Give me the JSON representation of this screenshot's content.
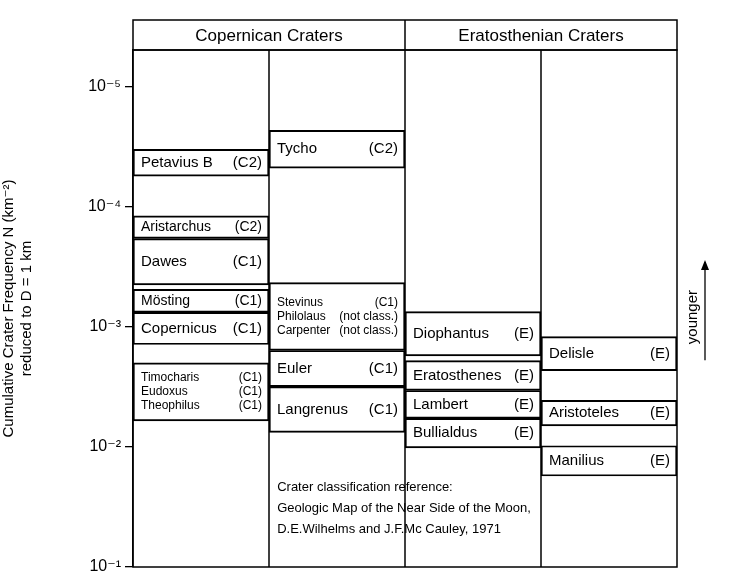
{
  "chart_data": {
    "type": "bar",
    "log": "y",
    "grid": false,
    "tick_labels": "y",
    "color": "#000000",
    "ylabel": [
      "Cumulative Crater Frequency N (km⁻²)",
      "reduced to D = 1 km"
    ],
    "ylim": [
      5e-06,
      0.1
    ],
    "yticks": [
      {
        "value": 1e-05,
        "label": "10⁻⁵"
      },
      {
        "value": 0.0001,
        "label": "10⁻⁴"
      },
      {
        "value": 0.001,
        "label": "10⁻³"
      },
      {
        "value": 0.01,
        "label": "10⁻²"
      },
      {
        "value": 0.1,
        "label": "10⁻¹"
      }
    ],
    "groups": [
      {
        "title": "Copernican Craters",
        "columns": [
          {
            "bands": [
              {
                "range": [
                  3.35e-05,
                  5.6e-05
                ],
                "labels": [
                  {
                    "name": "Petavius B",
                    "class": "(C2)"
                  }
                ]
              },
              {
                "range": [
                  0.00012,
                  0.000185
                ],
                "labels": [
                  {
                    "name": "Aristarchus",
                    "class": "(C2)"
                  }
                ]
              },
              {
                "range": [
                  0.000185,
                  0.00045
                ],
                "labels": [
                  {
                    "name": "Dawes",
                    "class": "(C1)"
                  }
                ]
              },
              {
                "range": [
                  0.00049,
                  0.00076
                ],
                "labels": [
                  {
                    "name": "Mösting",
                    "class": "(C1)"
                  }
                ]
              },
              {
                "range": [
                  0.00076,
                  0.00141
                ],
                "labels": [
                  {
                    "name": "Copernicus",
                    "class": "(C1)"
                  }
                ]
              },
              {
                "range": [
                  0.002,
                  0.0061
                ],
                "labels": [
                  {
                    "name": "Timocharis",
                    "class": "(C1)"
                  },
                  {
                    "name": "Eudoxus",
                    "class": "(C1)"
                  },
                  {
                    "name": "Theophilus",
                    "class": "(C1)"
                  }
                ]
              }
            ]
          },
          {
            "bands": [
              {
                "range": [
                  2.33e-05,
                  4.8e-05
                ],
                "labels": [
                  {
                    "name": "Tycho",
                    "class": "(C2)"
                  }
                ]
              },
              {
                "range": [
                  0.00043,
                  0.00158
                ],
                "labels": [
                  {
                    "name": "Stevinus",
                    "class": "(C1)"
                  },
                  {
                    "name": "Philolaus",
                    "class": "(not class.)"
                  },
                  {
                    "name": "Carpenter",
                    "class": "(not class.)"
                  }
                ]
              },
              {
                "range": [
                  0.00158,
                  0.00316
                ],
                "labels": [
                  {
                    "name": "Euler",
                    "class": "(C1)"
                  }
                ]
              },
              {
                "range": [
                  0.00316,
                  0.0076
                ],
                "labels": [
                  {
                    "name": "Langrenus",
                    "class": "(C1)"
                  }
                ]
              }
            ]
          }
        ]
      },
      {
        "title": "Eratosthenian Craters",
        "columns": [
          {
            "bands": [
              {
                "range": [
                  0.00075,
                  0.00175
                ],
                "labels": [
                  {
                    "name": "Diophantus",
                    "class": "(E)"
                  }
                ]
              },
              {
                "range": [
                  0.00192,
                  0.0034
                ],
                "labels": [
                  {
                    "name": "Eratosthenes",
                    "class": "(E)"
                  }
                ]
              },
              {
                "range": [
                  0.0034,
                  0.0058
                ],
                "labels": [
                  {
                    "name": "Lambert",
                    "class": "(E)"
                  }
                ]
              },
              {
                "range": [
                  0.0058,
                  0.0102
                ],
                "labels": [
                  {
                    "name": "Bullialdus",
                    "class": "(E)"
                  }
                ]
              }
            ]
          },
          {
            "bands": [
              {
                "range": [
                  0.00121,
                  0.00233
                ],
                "labels": [
                  {
                    "name": "Delisle",
                    "class": "(E)"
                  }
                ]
              },
              {
                "range": [
                  0.0041,
                  0.0067
                ],
                "labels": [
                  {
                    "name": "Aristoteles",
                    "class": "(E)"
                  }
                ]
              },
              {
                "range": [
                  0.0098,
                  0.0175
                ],
                "labels": [
                  {
                    "name": "Manilius",
                    "class": "(E)"
                  }
                ]
              }
            ]
          }
        ]
      }
    ],
    "annotation": [
      "Crater classification reference:",
      "Geologic Map of the Near Side of the Moon,",
      "D.E.Wilhelms and J.F.Mc Cauley, 1971"
    ],
    "arrow_label": "younger"
  }
}
